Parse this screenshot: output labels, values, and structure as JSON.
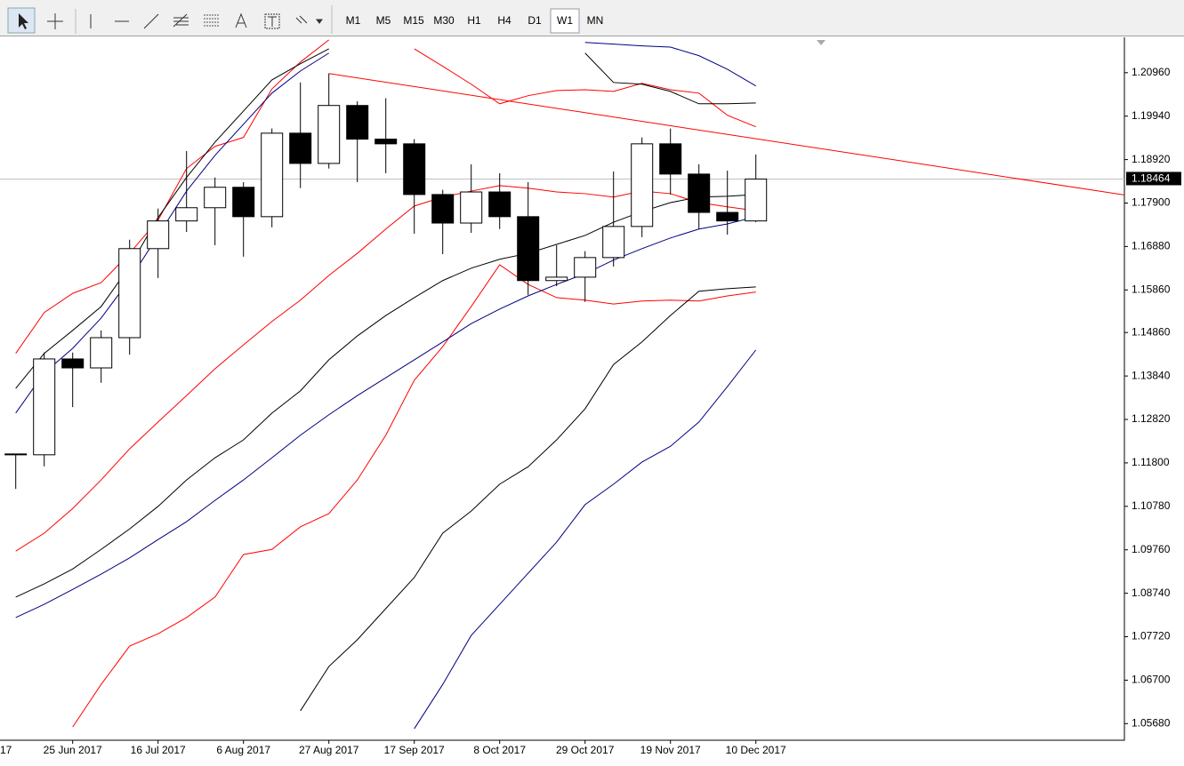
{
  "toolbar": {
    "timeframes": [
      "M1",
      "M5",
      "M15",
      "M30",
      "H1",
      "H4",
      "D1",
      "W1",
      "MN"
    ],
    "active_index": 7
  },
  "chart_data": {
    "type": "candlestick",
    "categories": [
      null,
      null,
      "25 Jun 2017",
      null,
      null,
      "16 Jul 2017",
      null,
      null,
      "6 Aug 2017",
      null,
      null,
      "27 Aug 2017",
      null,
      null,
      "17 Sep 2017",
      null,
      null,
      "8 Oct 2017",
      null,
      null,
      "29 Oct 2017",
      null,
      null,
      "19 Nov 2017",
      null,
      null,
      "10 Dec 2017"
    ],
    "x_label_clipped": "17",
    "open": [
      1.1201,
      1.1199,
      1.1424,
      1.1403,
      1.1474,
      1.1683,
      1.1748,
      1.1779,
      1.1827,
      1.1758,
      1.1954,
      1.1883,
      1.2019,
      1.194,
      1.1929,
      1.181,
      1.1743,
      1.1816,
      1.1758,
      1.1608,
      1.1616,
      1.1662,
      1.1735,
      1.1929,
      1.1858,
      1.1768,
      1.1748
    ],
    "high": [
      1.1201,
      1.1439,
      1.1439,
      1.1491,
      1.1704,
      1.1777,
      1.1912,
      1.185,
      1.1839,
      1.1965,
      1.2073,
      1.2094,
      1.2029,
      1.2036,
      1.194,
      1.1821,
      1.1881,
      1.186,
      1.1839,
      1.1691,
      1.1677,
      1.1864,
      1.1944,
      1.1965,
      1.1881,
      1.1866,
      1.1904
    ],
    "low": [
      1.1119,
      1.1172,
      1.1311,
      1.1368,
      1.1434,
      1.1614,
      1.1722,
      1.1691,
      1.1664,
      1.1733,
      1.1825,
      1.1871,
      1.1839,
      1.186,
      1.1718,
      1.167,
      1.172,
      1.1729,
      1.1574,
      1.1595,
      1.1558,
      1.1641,
      1.171,
      1.181,
      1.1729,
      1.1716,
      1.1745
    ],
    "close": [
      1.1201,
      1.1424,
      1.1403,
      1.1474,
      1.1683,
      1.1748,
      1.1779,
      1.1827,
      1.1758,
      1.1954,
      1.1883,
      1.2019,
      1.194,
      1.1929,
      1.181,
      1.1743,
      1.1816,
      1.1758,
      1.1608,
      1.1616,
      1.1662,
      1.1735,
      1.1929,
      1.1858,
      1.1768,
      1.1748,
      1.18464
    ],
    "series": [
      {
        "color": "#ff0000",
        "values": [
          1.1437,
          1.1533,
          1.1578,
          1.1603,
          1.1672,
          1.175,
          1.1871,
          1.1923,
          1.1944,
          1.2058,
          1.2121,
          1.2173,
          null,
          null,
          1.2152,
          1.2111,
          1.2069,
          1.2023,
          1.2042,
          1.2054,
          1.2056,
          1.2052,
          1.2071,
          1.2056,
          1.2048,
          1.1996,
          1.1969
        ]
      },
      {
        "color": "#ff0000",
        "values": [
          1.0973,
          1.1015,
          1.1073,
          1.114,
          1.1213,
          1.1276,
          1.1338,
          1.1401,
          1.1457,
          1.1512,
          1.1562,
          1.162,
          1.1672,
          1.1729,
          1.1783,
          1.1804,
          1.1818,
          1.1831,
          1.1825,
          1.1816,
          1.1812,
          1.1804,
          1.1818,
          1.1812,
          1.1791,
          1.1781,
          1.1772
        ]
      },
      {
        "color": "#ff0000",
        "values": [
          null,
          null,
          1.056,
          1.066,
          1.075,
          1.0779,
          1.0817,
          1.0865,
          1.0965,
          1.0977,
          1.103,
          1.1061,
          1.114,
          1.1245,
          1.1374,
          1.1453,
          1.1547,
          1.1645,
          1.1599,
          1.1568,
          1.1562,
          1.1553,
          1.156,
          1.1562,
          1.156,
          1.1572,
          1.1581
        ]
      },
      {
        "color": "#000000",
        "values": [
          1.1355,
          1.1437,
          1.1491,
          1.1547,
          1.1641,
          1.1756,
          1.185,
          1.1933,
          1.2006,
          1.2079,
          1.2117,
          1.2152,
          null,
          null,
          null,
          null,
          null,
          null,
          null,
          null,
          1.2142,
          1.2073,
          1.2069,
          1.2052,
          1.2023,
          1.2023,
          1.2025
        ]
      },
      {
        "color": "#000000",
        "values": [
          1.0865,
          1.0896,
          1.0931,
          1.0977,
          1.1025,
          1.1078,
          1.114,
          1.1192,
          1.1234,
          1.1297,
          1.1349,
          1.1422,
          1.1478,
          1.1526,
          1.1568,
          1.1608,
          1.1637,
          1.1658,
          1.1672,
          1.1693,
          1.1714,
          1.1745,
          1.177,
          1.1791,
          1.1804,
          1.1806,
          1.181
        ]
      },
      {
        "color": "#000000",
        "values": [
          null,
          null,
          null,
          null,
          null,
          null,
          null,
          null,
          null,
          null,
          1.0598,
          1.0702,
          1.0765,
          1.0838,
          1.0911,
          1.1015,
          1.1067,
          1.113,
          1.1171,
          1.1234,
          1.1307,
          1.1411,
          1.1464,
          1.1526,
          1.1583,
          1.1589,
          1.1593
        ]
      },
      {
        "color": "#000080",
        "values": [
          1.1297,
          1.1391,
          1.1449,
          1.152,
          1.161,
          1.1714,
          1.1818,
          1.1902,
          1.1975,
          1.2048,
          1.21,
          1.2142,
          null,
          null,
          null,
          null,
          null,
          null,
          null,
          null,
          1.2167,
          1.2163,
          1.2159,
          1.2156,
          1.2136,
          1.2104,
          1.2065
        ]
      },
      {
        "color": "#000080",
        "values": [
          1.0817,
          1.0848,
          1.0883,
          1.0919,
          1.0957,
          1.1,
          1.1042,
          1.1092,
          1.114,
          1.1192,
          1.1245,
          1.1293,
          1.1338,
          1.138,
          1.1422,
          1.1464,
          1.1507,
          1.1541,
          1.1572,
          1.1599,
          1.1624,
          1.1656,
          1.1683,
          1.1708,
          1.1729,
          1.1741,
          1.1758
        ]
      },
      {
        "color": "#000080",
        "values": [
          null,
          null,
          null,
          null,
          null,
          null,
          null,
          null,
          null,
          null,
          null,
          null,
          null,
          null,
          1.0556,
          1.066,
          1.0775,
          1.0848,
          1.0921,
          1.0994,
          1.1082,
          1.113,
          1.1182,
          1.1219,
          1.1276,
          1.1359,
          1.1445
        ]
      }
    ],
    "trendline": {
      "x": [
        11,
        40.7
      ],
      "y": [
        1.2094,
        1.1791
      ],
      "color": "#ff0000"
    },
    "current_price": 1.18464,
    "ylim": [
      1.0529,
      1.2179
    ],
    "yticks": [
      {
        "value": 1.2096,
        "label": "1.20960"
      },
      {
        "value": 1.1994,
        "label": "1.19940"
      },
      {
        "value": 1.1892,
        "label": "1.18920"
      },
      {
        "value": 1.179,
        "label": "1.17900"
      },
      {
        "value": 1.1688,
        "label": "1.16880"
      },
      {
        "value": 1.1586,
        "label": "1.15860"
      },
      {
        "value": 1.1486,
        "label": "1.14860"
      },
      {
        "value": 1.1384,
        "label": "1.13840"
      },
      {
        "value": 1.1282,
        "label": "1.12820"
      },
      {
        "value": 1.118,
        "label": "1.11800"
      },
      {
        "value": 1.1078,
        "label": "1.10780"
      },
      {
        "value": 1.0976,
        "label": "1.09760"
      },
      {
        "value": 1.0874,
        "label": "1.08740"
      },
      {
        "value": 1.0772,
        "label": "1.07720"
      },
      {
        "value": 1.067,
        "label": "1.06700"
      },
      {
        "value": 1.0568,
        "label": "1.05680"
      }
    ],
    "bull_color": "#ffffff",
    "bear_color": "#000000"
  }
}
